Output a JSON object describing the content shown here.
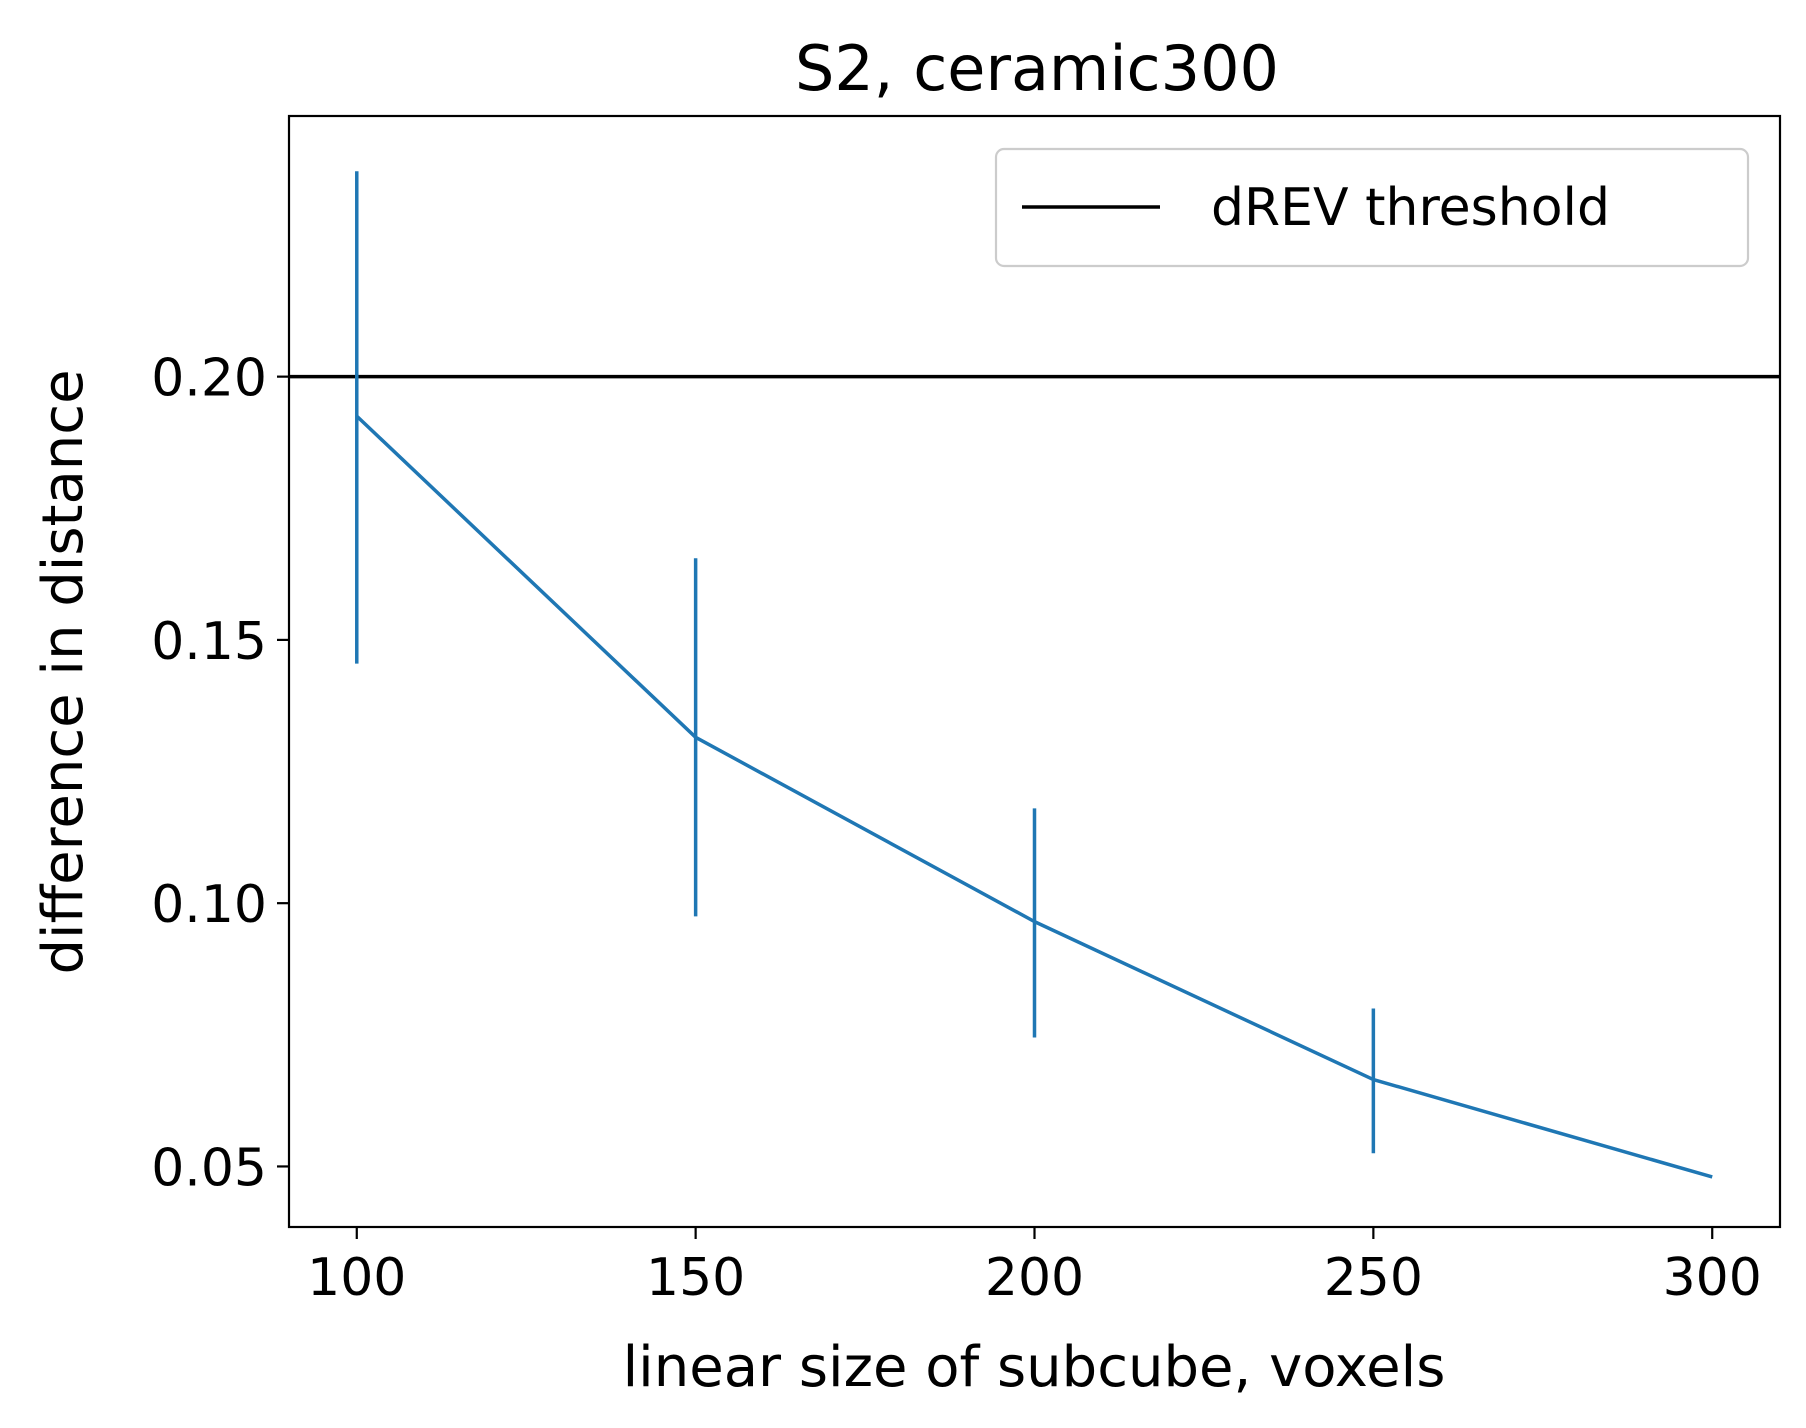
{
  "chart_data": {
    "type": "line",
    "title": "S2, ceramic300",
    "xlabel": "linear size of subcube, voxels",
    "ylabel": "difference in distance",
    "xlim": [
      90,
      310
    ],
    "ylim": [
      0.0385,
      0.2495
    ],
    "xticks": [
      100,
      150,
      200,
      250,
      300
    ],
    "xtick_labels": [
      "100",
      "150",
      "200",
      "250",
      "300"
    ],
    "yticks": [
      0.05,
      0.1,
      0.15,
      0.2
    ],
    "ytick_labels": [
      "0.05",
      "0.10",
      "0.15",
      "0.20"
    ],
    "grid": false,
    "legend_position": "top-right",
    "series": [
      {
        "x": [
          100,
          150,
          200,
          250,
          300
        ],
        "values": [
          0.1925,
          0.1315,
          0.0965,
          0.0665,
          0.048
        ],
        "err_low": [
          0.1455,
          0.0975,
          0.0745,
          0.0525,
          null
        ],
        "err_high": [
          0.239,
          0.1655,
          0.118,
          0.08,
          null
        ],
        "color": "#1f77b4"
      }
    ],
    "hlines": [
      {
        "name": "dREV threshold",
        "y": 0.2,
        "color": "#000000"
      }
    ]
  }
}
